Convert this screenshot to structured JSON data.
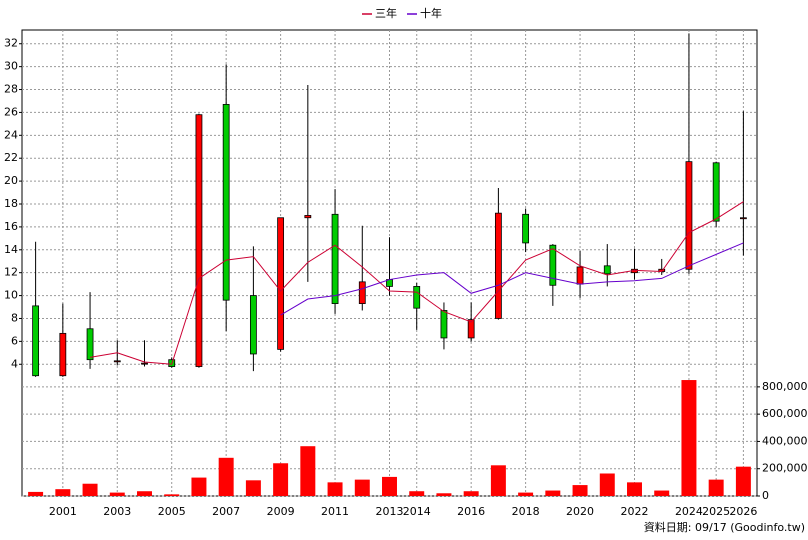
{
  "chart_data": {
    "type": "candlestick",
    "legend": "top",
    "grid": true,
    "categories": [
      null,
      "2001",
      null,
      "2003",
      null,
      "2005",
      null,
      "2007",
      null,
      "2009",
      null,
      "2011",
      null,
      "2013",
      "2014",
      null,
      "2016",
      null,
      "2018",
      null,
      "2020",
      null,
      "2022",
      null,
      "2024",
      "2025",
      "2026"
    ],
    "open": [
      9.1,
      3.0,
      7.1,
      4.3,
      4.1,
      4.4,
      3.8,
      26.7,
      10.0,
      5.3,
      16.8,
      17.1,
      9.3,
      11.4,
      10.8,
      8.7,
      6.3,
      8.0,
      17.1,
      14.4,
      11.0,
      12.6,
      12.0,
      12.1,
      12.3,
      21.6,
      16.8
    ],
    "high": [
      14.7,
      9.3,
      10.3,
      6.1,
      6.1,
      4.6,
      25.9,
      30.2,
      14.3,
      16.8,
      28.4,
      19.3,
      16.1,
      15.1,
      11.1,
      9.4,
      9.4,
      19.4,
      17.6,
      14.5,
      13.9,
      14.5,
      14.1,
      13.2,
      32.9,
      21.7,
      26.1
    ],
    "low": [
      2.9,
      2.9,
      3.6,
      3.9,
      3.8,
      3.7,
      3.7,
      6.9,
      3.4,
      5.1,
      11.2,
      8.4,
      8.7,
      10.0,
      7.0,
      5.3,
      6.0,
      7.9,
      13.8,
      9.1,
      9.8,
      10.8,
      11.4,
      11.8,
      11.9,
      16.0,
      13.5
    ],
    "close": [
      3.0,
      6.7,
      4.4,
      4.3,
      4.1,
      3.8,
      25.8,
      9.6,
      4.9,
      16.8,
      17.0,
      9.3,
      11.2,
      10.8,
      8.9,
      6.3,
      7.9,
      17.2,
      14.6,
      10.9,
      12.5,
      11.9,
      12.3,
      12.3,
      21.7,
      16.5,
      16.8
    ],
    "up_color": "#ff0000",
    "down_color": "#00cc00",
    "series": [
      {
        "name": "三年",
        "color": "#cc0033",
        "values": [
          null,
          null,
          4.6,
          5.0,
          4.2,
          4.0,
          11.5,
          13.1,
          13.4,
          10.4,
          12.9,
          14.4,
          12.5,
          10.4,
          10.3,
          8.6,
          7.7,
          10.4,
          13.1,
          14.1,
          12.6,
          11.8,
          12.2,
          12.1,
          15.5,
          16.7,
          18.2
        ]
      },
      {
        "name": "十年",
        "color": "#6600cc",
        "values": [
          null,
          null,
          null,
          null,
          null,
          null,
          null,
          null,
          null,
          8.3,
          9.7,
          10.0,
          10.6,
          11.4,
          11.8,
          12.0,
          10.2,
          10.9,
          12.0,
          11.5,
          11.0,
          11.2,
          11.3,
          11.5,
          12.6,
          13.6,
          14.6
        ]
      }
    ],
    "volume": {
      "axis": "y2",
      "color": "#ff0000",
      "values": [
        30000,
        50000,
        90000,
        25000,
        35000,
        12000,
        135000,
        280000,
        115000,
        240000,
        365000,
        100000,
        120000,
        140000,
        35000,
        20000,
        35000,
        225000,
        25000,
        40000,
        80000,
        165000,
        100000,
        40000,
        850000,
        120000,
        215000
      ]
    },
    "ylim": [
      2.8,
      33.2
    ],
    "yticks": [
      4,
      6,
      8,
      10,
      12,
      14,
      16,
      18,
      20,
      22,
      24,
      26,
      28,
      30,
      32
    ],
    "y2lim": [
      0,
      865000
    ],
    "y2ticks": [
      0,
      {
        "value": 200000,
        "label": "200,000"
      },
      {
        "value": 400000,
        "label": "400,000"
      },
      {
        "value": 600000,
        "label": "600,000"
      },
      {
        "value": 800000,
        "label": "800,000"
      }
    ],
    "footnote": "資料日期: 09/17 (Goodinfo.tw)"
  }
}
